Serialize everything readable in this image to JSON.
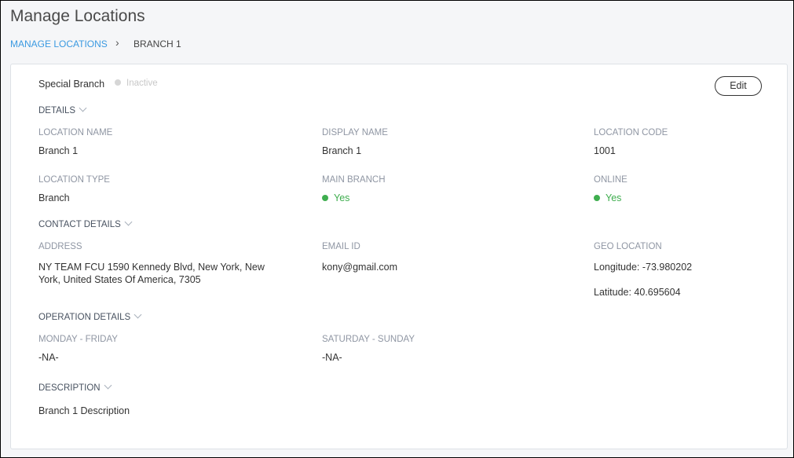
{
  "page": {
    "title": "Manage Locations"
  },
  "breadcrumb": {
    "parent": "MANAGE LOCATIONS",
    "current": "BRANCH 1"
  },
  "header": {
    "name": "Special Branch",
    "status": "Inactive",
    "edit_label": "Edit"
  },
  "details": {
    "section": "DETAILS",
    "location_name": {
      "label": "LOCATION NAME",
      "value": "Branch 1"
    },
    "display_name": {
      "label": "DISPLAY NAME",
      "value": "Branch 1"
    },
    "location_code": {
      "label": "LOCATION CODE",
      "value": "1001"
    },
    "location_type": {
      "label": "LOCATION TYPE",
      "value": "Branch"
    },
    "main_branch": {
      "label": "MAIN BRANCH",
      "value": "Yes"
    },
    "online": {
      "label": "ONLINE",
      "value": "Yes"
    }
  },
  "contact": {
    "section": "CONTACT DETAILS",
    "address": {
      "label": "ADDRESS",
      "line1": "NY TEAM FCU 1590 Kennedy Blvd, New York, New",
      "line2": "York, United States Of America, 7305"
    },
    "email": {
      "label": "EMAIL ID",
      "value": "kony@gmail.com"
    },
    "geo": {
      "label": "GEO LOCATION",
      "longitude": "Longitude: -73.980202",
      "latitude": "Latitude: 40.695604"
    }
  },
  "operation": {
    "section": "OPERATION DETAILS",
    "weekday": {
      "label": "MONDAY - FRIDAY",
      "value": "-NA-"
    },
    "weekend": {
      "label": "SATURDAY - SUNDAY",
      "value": "-NA-"
    }
  },
  "description": {
    "section": "DESCRIPTION",
    "value": "Branch 1 Description"
  },
  "colors": {
    "accent": "#3b9ae1",
    "active": "#3fae4f",
    "inactive": "#d6d6d6"
  }
}
